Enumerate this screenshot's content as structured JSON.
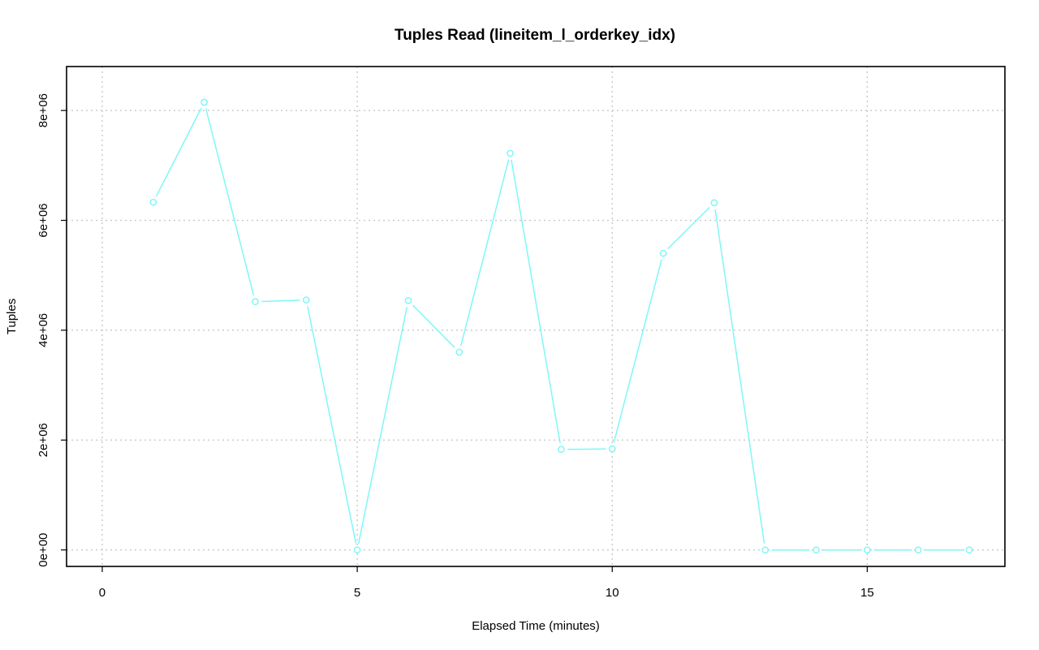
{
  "colors": {
    "series": "#7ff7f7",
    "background": "#ffffff",
    "grid": "#c8c8c8"
  },
  "chart_data": {
    "type": "line",
    "title": "Tuples Read (lineitem_l_orderkey_idx)",
    "xlabel": "Elapsed Time (minutes)",
    "ylabel": "Tuples",
    "xlim": [
      -0.7,
      17.7
    ],
    "ylim": [
      -300000,
      8800000
    ],
    "xticks": [
      0,
      5,
      10,
      15
    ],
    "xtick_labels": [
      "0",
      "5",
      "10",
      "15"
    ],
    "yticks": [
      0,
      2000000,
      4000000,
      6000000,
      8000000
    ],
    "ytick_labels": [
      "0e+00",
      "2e+06",
      "4e+06",
      "6e+06",
      "8e+06"
    ],
    "grid": true,
    "legend": "none",
    "series": [
      {
        "x": [
          1,
          2,
          3,
          4,
          5,
          6,
          7,
          8,
          9,
          10,
          11,
          12,
          13,
          14,
          15,
          16,
          17
        ],
        "values": [
          6330000,
          8150000,
          4520000,
          4550000,
          0,
          4540000,
          3600000,
          7220000,
          1830000,
          1840000,
          5400000,
          6320000,
          0,
          0,
          0,
          0,
          0
        ]
      }
    ]
  }
}
